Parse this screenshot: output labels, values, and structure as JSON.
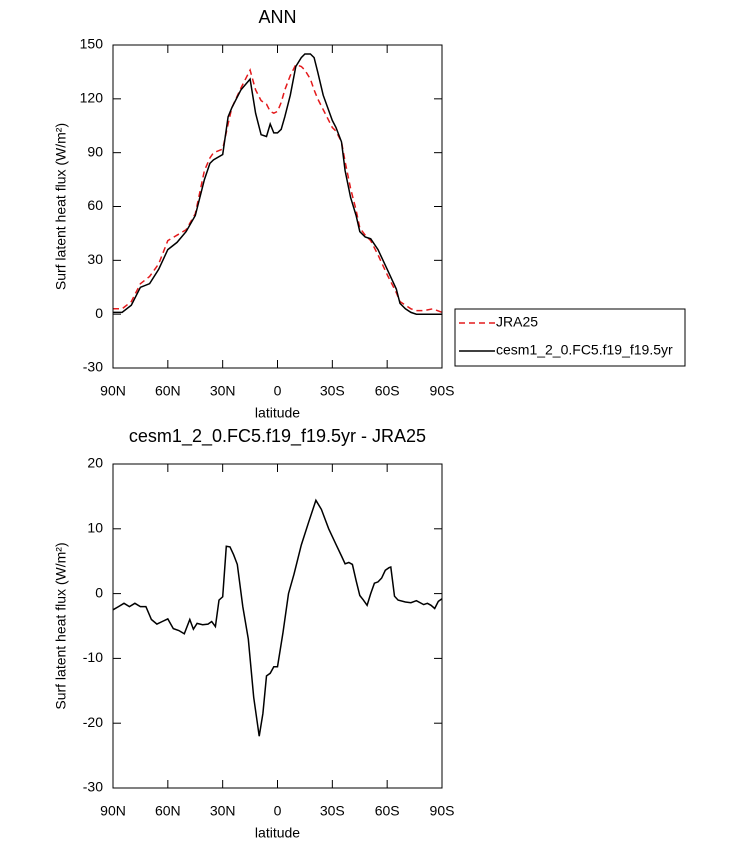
{
  "chart_data": [
    {
      "type": "line",
      "title": "ANN",
      "x_label": "latitude",
      "y_label": "Surf latent heat flux (W/m²)",
      "x": [
        90,
        85,
        80,
        75,
        70,
        65,
        60,
        55,
        50,
        45,
        40,
        37,
        35,
        30,
        27,
        25,
        20,
        15,
        12,
        9,
        6,
        4,
        2,
        0,
        -2,
        -4,
        -7,
        -10,
        -13,
        -15,
        -18,
        -20,
        -22,
        -25,
        -30,
        -32,
        -35,
        -37,
        -40,
        -43,
        -45,
        -48,
        -51,
        -55,
        -60,
        -65,
        -67,
        -70,
        -73,
        -76,
        -80,
        -85,
        -90
      ],
      "series": [
        {
          "name": "JRA25",
          "color": "#e41a1c",
          "dash": "dashed",
          "values": [
            3,
            3,
            7,
            17,
            21,
            28,
            41,
            44,
            47,
            56,
            80,
            87,
            90,
            92,
            106,
            115,
            126,
            136,
            125,
            119,
            117,
            113,
            112,
            113,
            118,
            125,
            133,
            139,
            138,
            136,
            131,
            125,
            120,
            114,
            104,
            102,
            96,
            85,
            70,
            58,
            48,
            44,
            41,
            33,
            22,
            12,
            7,
            5,
            3,
            2,
            2,
            3,
            1
          ]
        },
        {
          "name": "cesm1_2_0.FC5.f19_f19.5yr",
          "color": "#000000",
          "dash": "solid",
          "values": [
            1,
            1,
            5,
            15,
            17,
            25,
            36,
            40,
            46,
            55,
            75,
            84,
            86,
            89,
            110,
            115,
            125,
            131,
            112,
            100,
            99,
            106,
            101,
            101,
            103,
            110,
            122,
            138,
            143,
            145,
            145,
            143,
            135,
            122,
            108,
            104,
            96,
            80,
            65,
            55,
            46,
            43,
            42,
            36,
            25,
            14,
            6,
            3,
            1,
            0,
            0,
            0,
            0
          ]
        }
      ],
      "xlim": [
        90,
        -90
      ],
      "xticks": [
        {
          "value": 90,
          "label": "90N"
        },
        {
          "value": 60,
          "label": "60N"
        },
        {
          "value": 30,
          "label": "30N"
        },
        0,
        {
          "value": -30,
          "label": "30S"
        },
        {
          "value": -60,
          "label": "60S"
        },
        {
          "value": -90,
          "label": "90S"
        }
      ],
      "ylim": [
        -30,
        150
      ],
      "yticks": [
        -30,
        0,
        30,
        60,
        90,
        120,
        150
      ],
      "legend": "right"
    },
    {
      "type": "line",
      "title": "cesm1_2_0.FC5.f19_f19.5yr - JRA25",
      "x_label": "latitude",
      "y_label": "Surf latent heat flux (W/m²)",
      "x": [
        90,
        87,
        84,
        81,
        78,
        75,
        72,
        69,
        66,
        63,
        60,
        57,
        54,
        51,
        48,
        46,
        44,
        41,
        38,
        36,
        34,
        32,
        30,
        28,
        26,
        24,
        22,
        19,
        16,
        13,
        10,
        8,
        6,
        4,
        2,
        0,
        -3,
        -6,
        -9,
        -13,
        -17,
        -21,
        -24,
        -28,
        -32,
        -35,
        -37,
        -39,
        -41,
        -43,
        -45,
        -47,
        -49,
        -51,
        -53,
        -55,
        -57,
        -59,
        -61,
        -62,
        -64,
        -66,
        -70,
        -73,
        -76,
        -80,
        -82,
        -84,
        -86,
        -88,
        -90
      ],
      "values": [
        -2.5,
        -2,
        -1.5,
        -2,
        -1.5,
        -2,
        -2,
        -4,
        -4.7,
        -4.3,
        -3.9,
        -5.4,
        -5.7,
        -6.2,
        -4,
        -5.5,
        -4.6,
        -4.8,
        -4.7,
        -4.3,
        -5.1,
        -1,
        -0.5,
        7.3,
        7.2,
        6,
        4.5,
        -2,
        -7,
        -16,
        -22,
        -18.5,
        -12.7,
        -12.3,
        -11.3,
        -11.3,
        -6,
        0,
        3,
        7.5,
        11,
        14.4,
        13,
        10,
        7.6,
        5.8,
        4.6,
        4.8,
        4.5,
        2,
        -0.3,
        -1,
        -1.8,
        0,
        1.6,
        1.8,
        2.4,
        3.6,
        4,
        4.1,
        -0.4,
        -1,
        -1.3,
        -1.4,
        -1.1,
        -1.7,
        -1.5,
        -1.8,
        -2.3,
        -1.2,
        -0.8
      ],
      "color": "#000000",
      "xlim": [
        90,
        -90
      ],
      "xticks": [
        {
          "value": 90,
          "label": "90N"
        },
        {
          "value": 60,
          "label": "60N"
        },
        {
          "value": 30,
          "label": "30N"
        },
        0,
        {
          "value": -30,
          "label": "30S"
        },
        {
          "value": -60,
          "label": "60S"
        },
        {
          "value": -90,
          "label": "90S"
        }
      ],
      "ylim": [
        -30,
        20
      ],
      "yticks": [
        -30,
        -20,
        -10,
        0,
        10,
        20
      ]
    }
  ]
}
